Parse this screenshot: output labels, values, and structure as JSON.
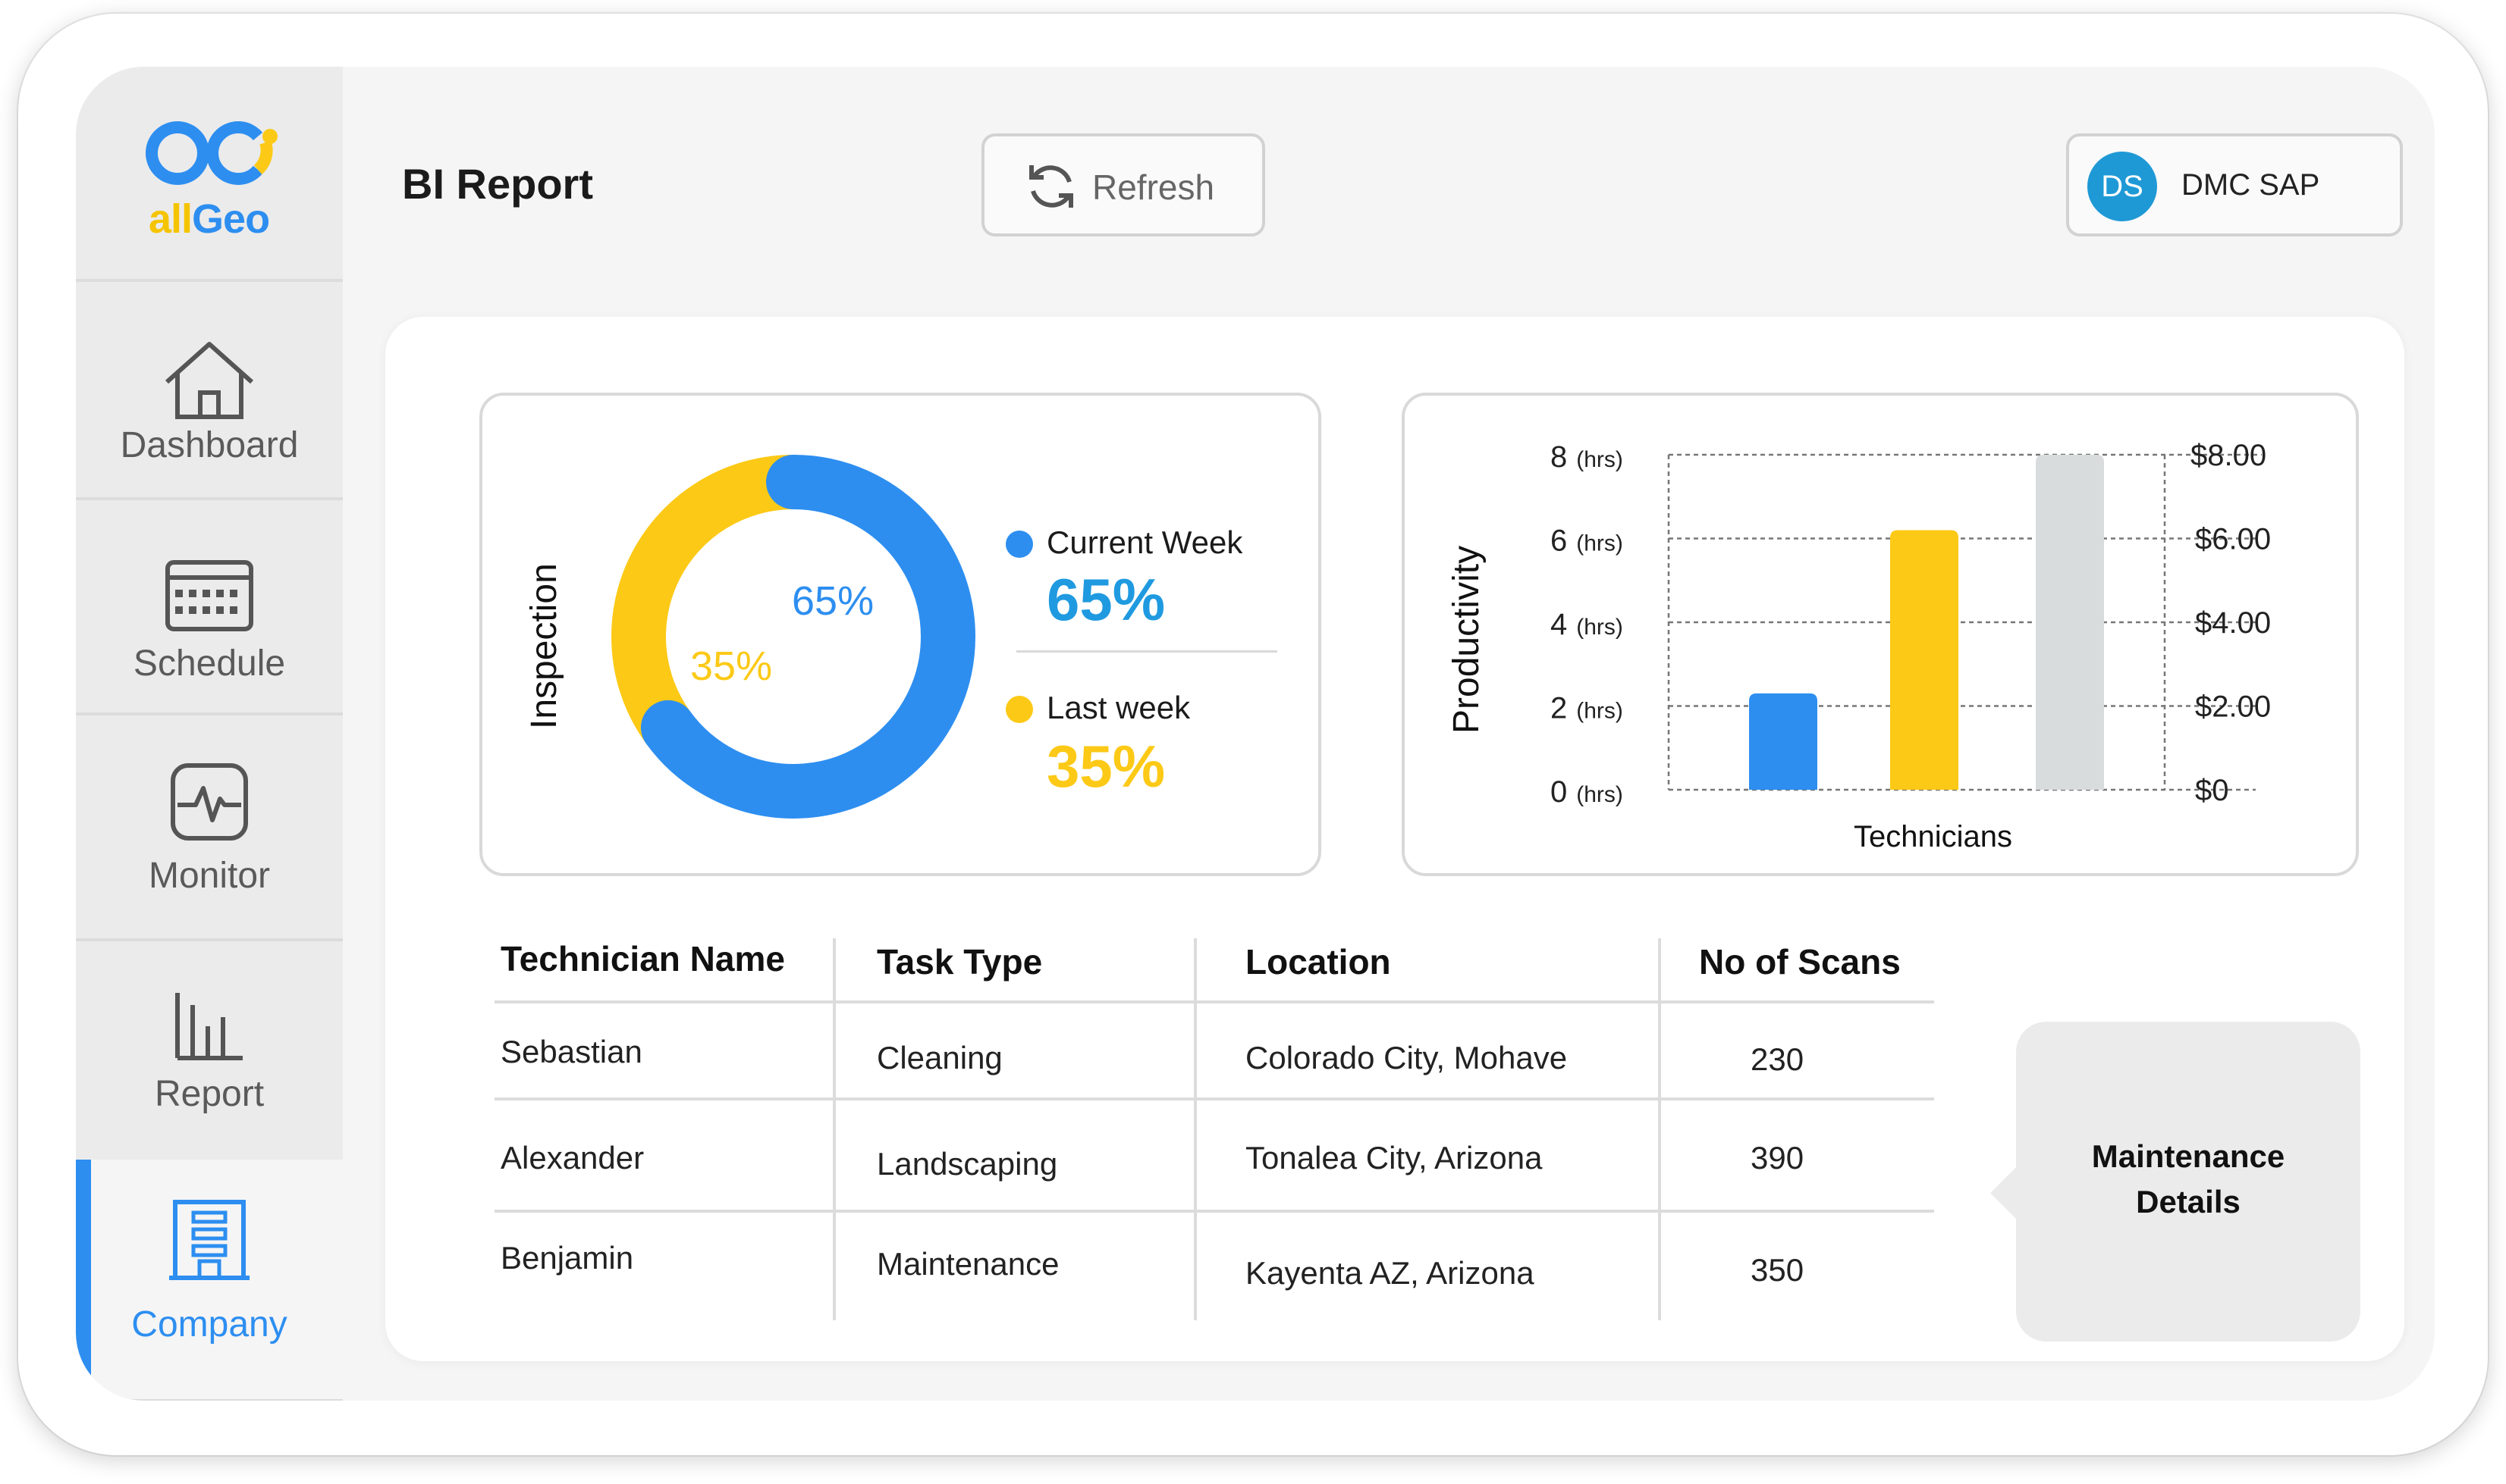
{
  "app": {
    "logo_text_left": "all",
    "logo_text_right": "Geo"
  },
  "sidebar": {
    "items": [
      {
        "label": "Dashboard",
        "icon": "home-icon"
      },
      {
        "label": "Schedule",
        "icon": "calendar-icon"
      },
      {
        "label": "Monitor",
        "icon": "pulse-monitor-icon"
      },
      {
        "label": "Report",
        "icon": "bar-report-icon"
      },
      {
        "label": "Company",
        "icon": "building-icon",
        "active": true
      }
    ]
  },
  "header": {
    "title": "BI Report",
    "refresh_label": "Refresh",
    "user_initials": "DS",
    "user_name": "DMC SAP"
  },
  "inspection": {
    "label": "Inspection",
    "current_week_label": "Current Week",
    "current_week_value": "65%",
    "last_week_label": "Last week",
    "last_week_value": "35%",
    "donut_current_label": "65%",
    "donut_last_label": "35%"
  },
  "productivity": {
    "ylabel": "Productivity",
    "xlabel": "Technicians",
    "left_ticks": [
      "8",
      "6",
      "4",
      "2",
      "0"
    ],
    "left_unit": "(hrs)",
    "right_ticks": [
      "$8.00",
      "$6.00",
      "$4.00",
      "$2.00",
      "$0"
    ]
  },
  "chart_data": [
    {
      "type": "pie",
      "title": "",
      "labels": [
        "Current Week",
        "Last week"
      ],
      "values": [
        65,
        35
      ],
      "colors": [
        "#2d8ef0",
        "#fcc916"
      ]
    },
    {
      "type": "bar",
      "xlabel": "Technicians",
      "ylabel": "Productivity",
      "categories": [
        "",
        "",
        ""
      ],
      "values": [
        2.3,
        6.2,
        8.0
      ],
      "colors": [
        "#2d8ef0",
        "#fcc916",
        "#d9dcdd"
      ],
      "ylim": [
        0,
        8
      ],
      "y_right_ticks": [
        "$0",
        "$2.00",
        "$4.00",
        "$6.00",
        "$8.00"
      ],
      "grid": true
    }
  ],
  "table": {
    "headers": [
      "Technician Name",
      "Task Type",
      "Location",
      "No of Scans"
    ],
    "rows": [
      [
        "Sebastian",
        "Cleaning",
        "Colorado City, Mohave",
        "230"
      ],
      [
        "Alexander",
        "Landscaping",
        "Tonalea City, Arizona",
        "390"
      ],
      [
        "Benjamin",
        "Maintenance",
        "Kayenta AZ, Arizona",
        "350"
      ]
    ]
  },
  "callout": {
    "line1": "Maintenance",
    "line2": "Details"
  },
  "colors": {
    "accent_blue": "#2d8ef0",
    "accent_yellow": "#fcc916",
    "gray_bar": "#d9dcdd",
    "avatar": "#1f99d6"
  }
}
